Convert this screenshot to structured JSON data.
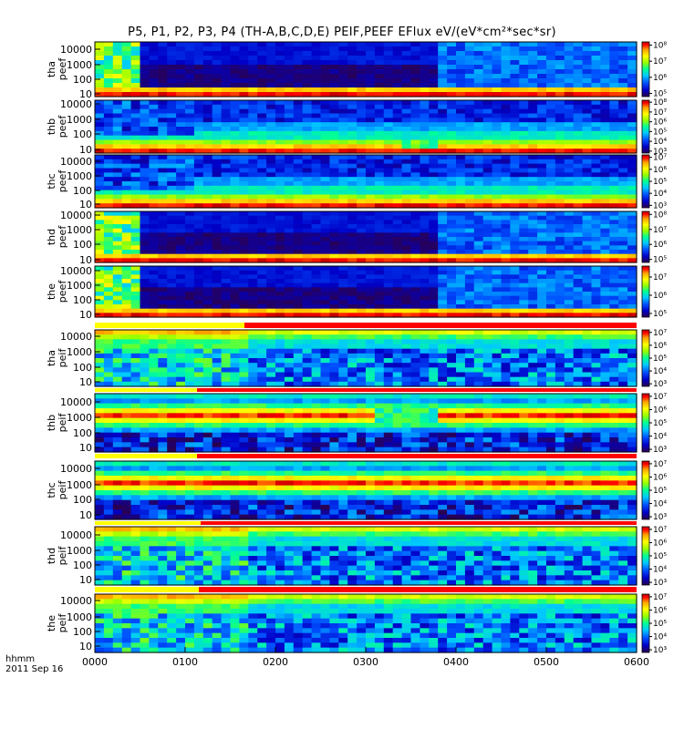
{
  "title": "P5, P1, P2, P3, P4 (TH-A,B,C,D,E) PEIF,PEEF EFlux eV/(eV*cm²*sec*sr)",
  "x_label": "hhmm",
  "date_label": "2011 Sep 16",
  "chart_data": {
    "type": "heatmap",
    "title": "P5, P1, P2, P3, P4 (TH-A,B,C,D,E) PEIF,PEEF EFlux eV/(eV*cm²*sec*sr)",
    "x_ticks": [
      "0000",
      "0100",
      "0200",
      "0300",
      "0400",
      "0500",
      "0600"
    ],
    "x_range_hours": [
      0,
      6
    ],
    "y_scale": "log",
    "y_ticks": [
      "10",
      "100",
      "1000",
      "10000"
    ],
    "color_scale": "log",
    "panels": [
      {
        "label_top": "tha",
        "label_bottom": "peef",
        "y_range_eV": [
          7,
          30000
        ],
        "colorbar_ticks": [
          "10⁵",
          "10⁶",
          "10⁷",
          "10⁸"
        ],
        "colorbar_range_log": [
          4.8,
          8.2
        ]
      },
      {
        "label_top": "thb",
        "label_bottom": "peef",
        "y_range_eV": [
          7,
          30000
        ],
        "colorbar_ticks": [
          "10³",
          "10⁴",
          "10⁵",
          "10⁶",
          "10⁷",
          "10⁸"
        ],
        "colorbar_range_log": [
          2.8,
          8.2
        ]
      },
      {
        "label_top": "thc",
        "label_bottom": "peef",
        "y_range_eV": [
          7,
          30000
        ],
        "colorbar_ticks": [
          "10³",
          "10⁴",
          "10⁵",
          "10⁶",
          "10⁷"
        ],
        "colorbar_range_log": [
          2.8,
          7.2
        ]
      },
      {
        "label_top": "thd",
        "label_bottom": "peef",
        "y_range_eV": [
          7,
          30000
        ],
        "colorbar_ticks": [
          "10⁵",
          "10⁶",
          "10⁷",
          "10⁸"
        ],
        "colorbar_range_log": [
          4.8,
          8.2
        ]
      },
      {
        "label_top": "the",
        "label_bottom": "peef",
        "y_range_eV": [
          7,
          30000
        ],
        "colorbar_ticks": [
          "10⁵",
          "10⁶",
          "10⁷"
        ],
        "colorbar_range_log": [
          4.8,
          7.6
        ]
      },
      {
        "label_top": "tha",
        "label_bottom": "peif",
        "y_range_eV": [
          5,
          25000
        ],
        "colorbar_ticks": [
          "10³",
          "10⁴",
          "10⁵",
          "10⁶",
          "10⁷"
        ],
        "colorbar_range_log": [
          2.8,
          7.2
        ]
      },
      {
        "label_top": "thb",
        "label_bottom": "peif",
        "y_range_eV": [
          5,
          25000
        ],
        "colorbar_ticks": [
          "10³",
          "10⁴",
          "10⁵",
          "10⁶",
          "10⁷"
        ],
        "colorbar_range_log": [
          2.8,
          7.2
        ]
      },
      {
        "label_top": "thc",
        "label_bottom": "peif",
        "y_range_eV": [
          5,
          25000
        ],
        "colorbar_ticks": [
          "10³",
          "10⁴",
          "10⁵",
          "10⁶",
          "10⁷"
        ],
        "colorbar_range_log": [
          2.8,
          7.2
        ]
      },
      {
        "label_top": "thd",
        "label_bottom": "peif",
        "y_range_eV": [
          5,
          25000
        ],
        "colorbar_ticks": [
          "10³",
          "10⁴",
          "10⁵",
          "10⁶",
          "10⁷"
        ],
        "colorbar_range_log": [
          2.8,
          7.2
        ]
      },
      {
        "label_top": "the",
        "label_bottom": "peif",
        "y_range_eV": [
          5,
          25000
        ],
        "colorbar_ticks": [
          "10³",
          "10⁴",
          "10⁵",
          "10⁶",
          "10⁷"
        ],
        "colorbar_range_log": [
          2.8,
          7.2
        ]
      }
    ],
    "colormap": [
      "#2a0050",
      "#0000c8",
      "#0050ff",
      "#00c8ff",
      "#00ff96",
      "#96ff00",
      "#ffff00",
      "#ffa000",
      "#ff0000",
      "#b40000"
    ]
  }
}
